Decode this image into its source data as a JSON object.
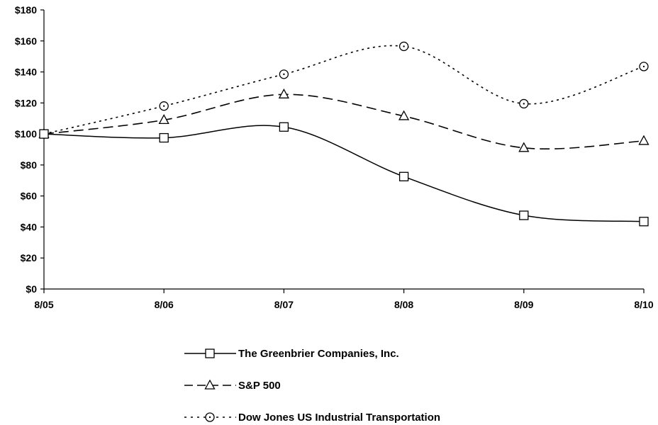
{
  "chart_data": {
    "type": "line",
    "title": "",
    "xlabel": "",
    "ylabel": "",
    "categories": [
      "8/05",
      "8/06",
      "8/07",
      "8/08",
      "8/09",
      "8/10"
    ],
    "ylim": [
      0,
      180
    ],
    "y_ticks": [
      0,
      20,
      40,
      60,
      80,
      100,
      120,
      140,
      160,
      180
    ],
    "y_tick_labels": [
      "$0",
      "$20",
      "$40",
      "$60",
      "$80",
      "$100",
      "$120",
      "$140",
      "$160",
      "$180"
    ],
    "grid": false,
    "legend_placement": "bottom",
    "series": [
      {
        "name": "The Greenbrier Companies, Inc.",
        "values": [
          100,
          97.5,
          104.5,
          72.5,
          47.5,
          43.5
        ],
        "marker": "square",
        "line": "solid",
        "color": "#000000"
      },
      {
        "name": "S&P 500",
        "values": [
          100,
          109,
          125.5,
          111.5,
          91,
          95.5
        ],
        "marker": "triangle",
        "line": "dashed",
        "color": "#000000"
      },
      {
        "name": "Dow Jones US Industrial Transportation",
        "values": [
          100,
          118,
          138.5,
          156.5,
          119.5,
          143.5
        ],
        "marker": "circle",
        "line": "dotted",
        "color": "#000000"
      }
    ]
  }
}
